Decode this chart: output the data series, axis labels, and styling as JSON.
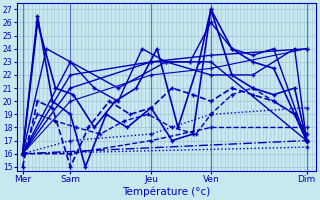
{
  "title": "Température (°c)",
  "background_color": "#c8e8f0",
  "grid_color_major": "#a0c4d8",
  "grid_color_minor": "#b8d8e8",
  "line_color": "#0000bb",
  "yticks": [
    15,
    16,
    17,
    18,
    19,
    20,
    21,
    22,
    23,
    24,
    25,
    26,
    27
  ],
  "ylim": [
    14.7,
    27.5
  ],
  "xlim": [
    0,
    100
  ],
  "xtick_positions": [
    2,
    18,
    45,
    65,
    97
  ],
  "xtick_labels": [
    "Mer",
    "Sam",
    "Jeu",
    "Ven",
    "Dim"
  ],
  "series": [
    {
      "x": [
        2,
        7,
        12,
        18,
        23,
        30,
        37,
        45,
        52,
        59,
        65,
        72,
        79,
        86,
        93,
        97
      ],
      "y": [
        16,
        26.5,
        20,
        19,
        15,
        19,
        18,
        19.5,
        17,
        17.5,
        27,
        22,
        21,
        20.5,
        21,
        17
      ],
      "style": "-",
      "lw": 1.2
    },
    {
      "x": [
        2,
        7,
        13,
        19,
        26,
        33,
        40,
        47,
        54,
        61,
        65,
        72,
        79,
        86,
        93,
        97
      ],
      "y": [
        16,
        26,
        21,
        20.5,
        18,
        20,
        21,
        24,
        18,
        23,
        27,
        24,
        23,
        22.5,
        19,
        17
      ],
      "style": "-",
      "lw": 1.2
    },
    {
      "x": [
        2,
        10,
        18,
        26,
        34,
        42,
        50,
        58,
        65,
        72,
        79,
        86,
        97
      ],
      "y": [
        16,
        24,
        23,
        21,
        20,
        24,
        23,
        23,
        26,
        24,
        23.5,
        24,
        17
      ],
      "style": "-",
      "lw": 1.0
    },
    {
      "x": [
        2,
        18,
        34,
        50,
        65,
        79,
        93,
        97
      ],
      "y": [
        16,
        23,
        21,
        23,
        22,
        22,
        24,
        17
      ],
      "style": "-",
      "lw": 1.0
    },
    {
      "x": [
        2,
        18,
        45,
        65,
        97
      ],
      "y": [
        16,
        22,
        23,
        23,
        17
      ],
      "style": "-",
      "lw": 1.0
    },
    {
      "x": [
        2,
        18,
        45,
        65,
        97
      ],
      "y": [
        16,
        21,
        23,
        23.5,
        24
      ],
      "style": "-",
      "lw": 1.0
    },
    {
      "x": [
        2,
        18,
        45,
        65,
        97
      ],
      "y": [
        16,
        20,
        22,
        22.5,
        24
      ],
      "style": "-",
      "lw": 0.8
    },
    {
      "x": [
        2,
        7,
        12,
        18,
        24,
        31,
        38,
        45,
        52,
        59,
        65,
        72,
        79,
        86,
        93,
        97
      ],
      "y": [
        15,
        20,
        19.5,
        15,
        18,
        20,
        19,
        19.5,
        21,
        20.5,
        20,
        21,
        20.5,
        20,
        19,
        17.5
      ],
      "style": "--",
      "lw": 1.2
    },
    {
      "x": [
        2,
        7,
        13,
        20,
        28,
        36,
        44,
        52,
        60,
        65,
        72,
        79,
        86,
        93,
        97
      ],
      "y": [
        16,
        19,
        18.5,
        18,
        17.5,
        18.5,
        19,
        18,
        17.5,
        19,
        20.5,
        21,
        20,
        19,
        17
      ],
      "style": "--",
      "lw": 1.0
    },
    {
      "x": [
        2,
        18,
        45,
        65,
        97
      ],
      "y": [
        16,
        16,
        17,
        18,
        18
      ],
      "style": "--",
      "lw": 1.0
    },
    {
      "x": [
        2,
        18,
        45,
        65,
        97
      ],
      "y": [
        16,
        17,
        17.5,
        19,
        19.5
      ],
      "style": ":",
      "lw": 1.0
    },
    {
      "x": [
        2,
        97
      ],
      "y": [
        16,
        16.5
      ],
      "style": ":",
      "lw": 1.0
    },
    {
      "x": [
        2,
        97
      ],
      "y": [
        16,
        17
      ],
      "style": "-.",
      "lw": 1.0
    }
  ]
}
